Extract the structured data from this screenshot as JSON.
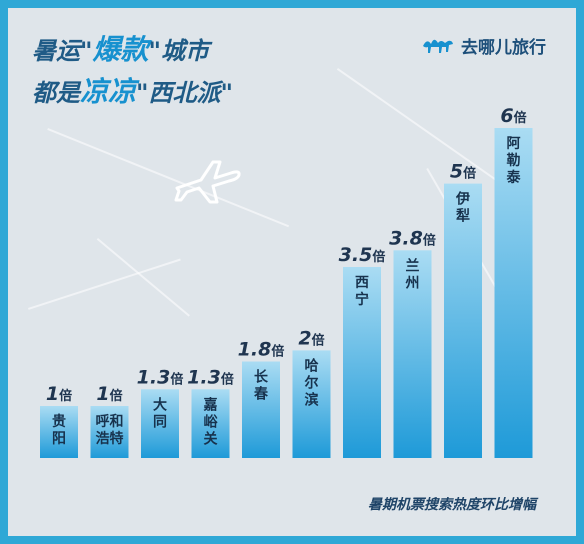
{
  "header": {
    "line1": [
      "暑运",
      "\"",
      "爆款",
      "\"",
      "城市"
    ],
    "line2": [
      "都是",
      "凉凉",
      "\"",
      "西北派",
      "\""
    ]
  },
  "brand": {
    "name": "去哪儿旅行",
    "logo_icon": "camel-icon"
  },
  "colors": {
    "bar_dark": "#1e9ad8",
    "bar_light": "#aadcf3",
    "label": "#1f3550",
    "accent": "#1791cf"
  },
  "chart_data": {
    "type": "bar",
    "title": "",
    "unit": "倍",
    "categories": [
      "贵阳",
      "呼和浩特",
      "大同",
      "嘉峪关",
      "长春",
      "哈尔滨",
      "西宁",
      "兰州",
      "伊犁",
      "阿勒泰"
    ],
    "category_lines": [
      [
        "贵",
        "阳"
      ],
      [
        "呼和",
        "浩特"
      ],
      [
        "大",
        "同"
      ],
      [
        "嘉",
        "峪",
        "关"
      ],
      [
        "长",
        "春"
      ],
      [
        "哈",
        "尔",
        "滨"
      ],
      [
        "西",
        "宁"
      ],
      [
        "兰",
        "州"
      ],
      [
        "伊",
        "犁"
      ],
      [
        "阿",
        "勒",
        "泰"
      ]
    ],
    "values": [
      1,
      1,
      1.3,
      1.3,
      1.8,
      2,
      3.5,
      3.8,
      5,
      6
    ],
    "value_labels": [
      "1",
      "1",
      "1.3",
      "1.3",
      "1.8",
      "2",
      "3.5",
      "3.8",
      "5",
      "6"
    ],
    "caption": "暑期机票搜索热度环比增幅",
    "ylim": [
      0,
      6
    ]
  }
}
